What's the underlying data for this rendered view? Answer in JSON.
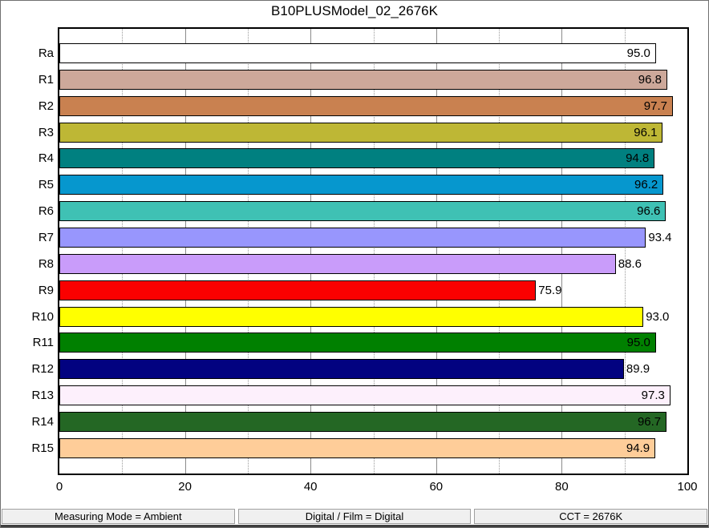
{
  "chart_data": {
    "type": "bar",
    "orientation": "horizontal",
    "title": "B10PLUSModel_02_2676K",
    "categories": [
      "Ra",
      "R1",
      "R2",
      "R3",
      "R4",
      "R5",
      "R6",
      "R7",
      "R8",
      "R9",
      "R10",
      "R11",
      "R12",
      "R13",
      "R14",
      "R15"
    ],
    "values": [
      95.0,
      96.8,
      97.7,
      96.1,
      94.8,
      96.2,
      96.6,
      93.4,
      88.6,
      75.9,
      93.0,
      95.0,
      89.9,
      97.3,
      96.7,
      94.9
    ],
    "value_labels": [
      "95.0",
      "96.8",
      "97.7",
      "96.1",
      "94.8",
      "96.2",
      "96.6",
      "93.4",
      "88.6",
      "75.9",
      "93.0",
      "95.0",
      "89.9",
      "97.3",
      "96.7",
      "94.9"
    ],
    "bar_colors": [
      "#ffffff",
      "#cda89a",
      "#c98150",
      "#beb735",
      "#008080",
      "#0697ce",
      "#3fc1b4",
      "#9896fd",
      "#c99cfa",
      "#fa0000",
      "#ffff00",
      "#008000",
      "#020280",
      "#fdf0fc",
      "#246724",
      "#fecd99"
    ],
    "xlim": [
      0,
      100
    ],
    "x_ticks": [
      0,
      20,
      40,
      60,
      80,
      100
    ],
    "solid_gridlines": [
      20,
      40,
      60,
      80
    ],
    "dotted_gridlines": [
      10,
      30,
      50,
      70,
      90
    ],
    "label_inside_threshold": 94,
    "grid": true,
    "legend": "none"
  },
  "status_bar": {
    "segments": [
      "Measuring Mode = Ambient",
      "Digital / Film = Digital",
      "CCT = 2676K"
    ]
  }
}
